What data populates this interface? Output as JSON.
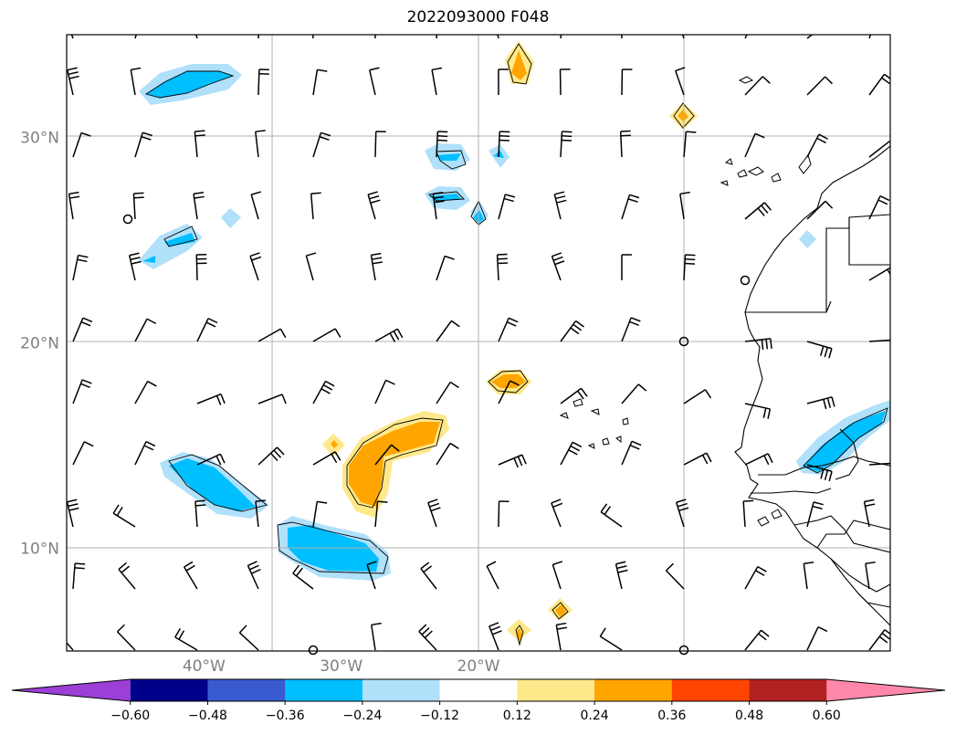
{
  "title": "2022093000 F048",
  "map": {
    "lon_range": [
      -50,
      10
    ],
    "lat_range": [
      5,
      35
    ],
    "lat_ticks": [
      {
        "value": 10,
        "label": "10°N"
      },
      {
        "value": 20,
        "label": "20°N"
      },
      {
        "value": 30,
        "label": "30°N"
      }
    ],
    "lon_ticks": [
      {
        "value": -40,
        "label": "40°W"
      },
      {
        "value": -30,
        "label": "30°W"
      },
      {
        "value": -20,
        "label": "20°W"
      }
    ],
    "gridlines": true,
    "wind_barbs": true,
    "coastlines": true
  },
  "colorbar": {
    "extend": "both",
    "levels": [
      "−0.60",
      "−0.48",
      "−0.36",
      "−0.24",
      "−0.12",
      "0.12",
      "0.24",
      "0.36",
      "0.48",
      "0.60"
    ],
    "colors": [
      "#9b3fd6",
      "#00008b",
      "#3a5bd0",
      "#00bfff",
      "#b0e0fa",
      "#ffffff",
      "#ffe88a",
      "#ffa500",
      "#ff4500",
      "#b22222",
      "#ff88aa"
    ]
  }
}
